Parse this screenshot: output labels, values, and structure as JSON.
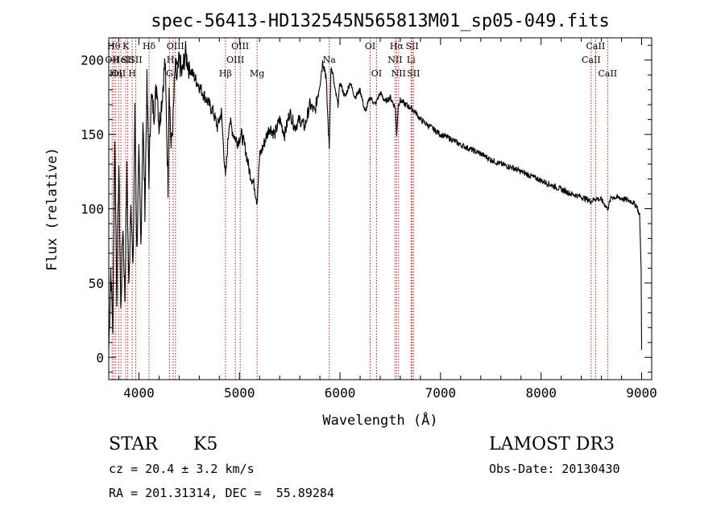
{
  "chart_data": {
    "type": "line",
    "title": "spec-56413-HD132545N565813M01_sp05-049.fits",
    "xlabel": "Wavelength (Å)",
    "ylabel": "Flux (relative)",
    "xlim": [
      3700,
      9100
    ],
    "ylim": [
      -15,
      215
    ],
    "xticks": [
      4000,
      5000,
      6000,
      7000,
      8000,
      9000
    ],
    "yticks": [
      0,
      50,
      100,
      150,
      200
    ],
    "grid": false,
    "line_color": "#000000",
    "marker_color": "#b22222",
    "series": [
      {
        "x": [
          3700,
          3720,
          3740,
          3760,
          3780,
          3800,
          3820,
          3840,
          3860,
          3880,
          3900,
          3920,
          3940,
          3960,
          3980,
          4000,
          4020,
          4040,
          4060,
          4080,
          4100,
          4120,
          4150,
          4180,
          4200,
          4230,
          4260,
          4290,
          4300,
          4320,
          4340,
          4360,
          4380,
          4400,
          4430,
          4460,
          4500,
          4540,
          4580,
          4620,
          4660,
          4700,
          4740,
          4780,
          4820,
          4861,
          4900,
          4940,
          4980,
          5020,
          5060,
          5100,
          5150,
          5175,
          5200,
          5250,
          5300,
          5350,
          5400,
          5450,
          5500,
          5550,
          5600,
          5650,
          5700,
          5750,
          5800,
          5830,
          5860,
          5893,
          5910,
          5930,
          5950,
          5980,
          6000,
          6050,
          6100,
          6150,
          6200,
          6250,
          6300,
          6350,
          6400,
          6450,
          6500,
          6550,
          6563,
          6580,
          6600,
          6650,
          6700,
          6750,
          6800,
          6900,
          7000,
          7100,
          7200,
          7300,
          7400,
          7500,
          7600,
          7700,
          7800,
          7900,
          8000,
          8100,
          8200,
          8300,
          8400,
          8498,
          8542,
          8600,
          8662,
          8700,
          8800,
          8900,
          8950,
          8980,
          8995,
          9000
        ],
        "y": [
          5,
          60,
          20,
          150,
          40,
          130,
          30,
          90,
          40,
          125,
          45,
          110,
          55,
          165,
          70,
          135,
          75,
          160,
          100,
          185,
          120,
          175,
          165,
          185,
          155,
          175,
          200,
          115,
          185,
          140,
          160,
          195,
          185,
          200,
          190,
          205,
          195,
          190,
          185,
          180,
          175,
          170,
          165,
          155,
          165,
          120,
          160,
          150,
          145,
          150,
          140,
          125,
          115,
          105,
          135,
          145,
          155,
          150,
          160,
          150,
          165,
          155,
          160,
          155,
          170,
          165,
          185,
          200,
          190,
          140,
          195,
          190,
          180,
          170,
          185,
          175,
          185,
          175,
          180,
          165,
          175,
          170,
          178,
          172,
          175,
          168,
          150,
          170,
          173,
          170,
          168,
          165,
          160,
          155,
          150,
          147,
          143,
          140,
          137,
          133,
          130,
          128,
          125,
          122,
          119,
          116,
          113,
          110,
          108,
          105,
          107,
          106,
          100,
          108,
          107,
          105,
          102,
          95,
          60,
          5
        ]
      }
    ],
    "lines": [
      {
        "w": 3734,
        "label": "OII",
        "row": 1
      },
      {
        "w": 3750,
        "label": "Hθ",
        "row": 0
      },
      {
        "w": 3770,
        "label": "Hη",
        "row": 2
      },
      {
        "w": 3798,
        "label": "OII",
        "row": 2
      },
      {
        "w": 3820,
        "label": "HeI",
        "row": 1
      },
      {
        "w": 3869,
        "label": "K",
        "row": 0
      },
      {
        "w": 3889,
        "label": "SII",
        "row": 1
      },
      {
        "w": 3934,
        "label": "H",
        "row": 2
      },
      {
        "w": 3968,
        "label": "SII",
        "row": 1
      },
      {
        "w": 4101,
        "label": "Hδ",
        "row": 0
      },
      {
        "w": 4304,
        "label": "G",
        "row": 2
      },
      {
        "w": 4340,
        "label": "Hγ",
        "row": 1
      },
      {
        "w": 4363,
        "label": "OIII",
        "row": 0
      },
      {
        "w": 4861,
        "label": "Hβ",
        "row": 2
      },
      {
        "w": 4959,
        "label": "OIII",
        "row": 1
      },
      {
        "w": 5007,
        "label": "OIII",
        "row": 0
      },
      {
        "w": 5175,
        "label": "Mg",
        "row": 2
      },
      {
        "w": 5893,
        "label": "Na",
        "row": 1
      },
      {
        "w": 6300,
        "label": "OI",
        "row": 0
      },
      {
        "w": 6363,
        "label": "OI",
        "row": 2
      },
      {
        "w": 6548,
        "label": "NII",
        "row": 1
      },
      {
        "w": 6563,
        "label": "Hα",
        "row": 0
      },
      {
        "w": 6583,
        "label": "NII",
        "row": 2
      },
      {
        "w": 6707,
        "label": "Li",
        "row": 1
      },
      {
        "w": 6717,
        "label": "SII",
        "row": 0
      },
      {
        "w": 6731,
        "label": "SII",
        "row": 2
      },
      {
        "w": 8498,
        "label": "CaII",
        "row": 1
      },
      {
        "w": 8542,
        "label": "CaII",
        "row": 0
      },
      {
        "w": 8662,
        "label": "CaII",
        "row": 2
      }
    ]
  },
  "info": {
    "class": "STAR",
    "subclass": "K5",
    "survey": "LAMOST DR3",
    "cz": "cz = 20.4 ± 3.2 km/s",
    "obs_date": "Obs-Date: 20130430",
    "coords": "RA = 201.31314, DEC =  55.89284"
  }
}
